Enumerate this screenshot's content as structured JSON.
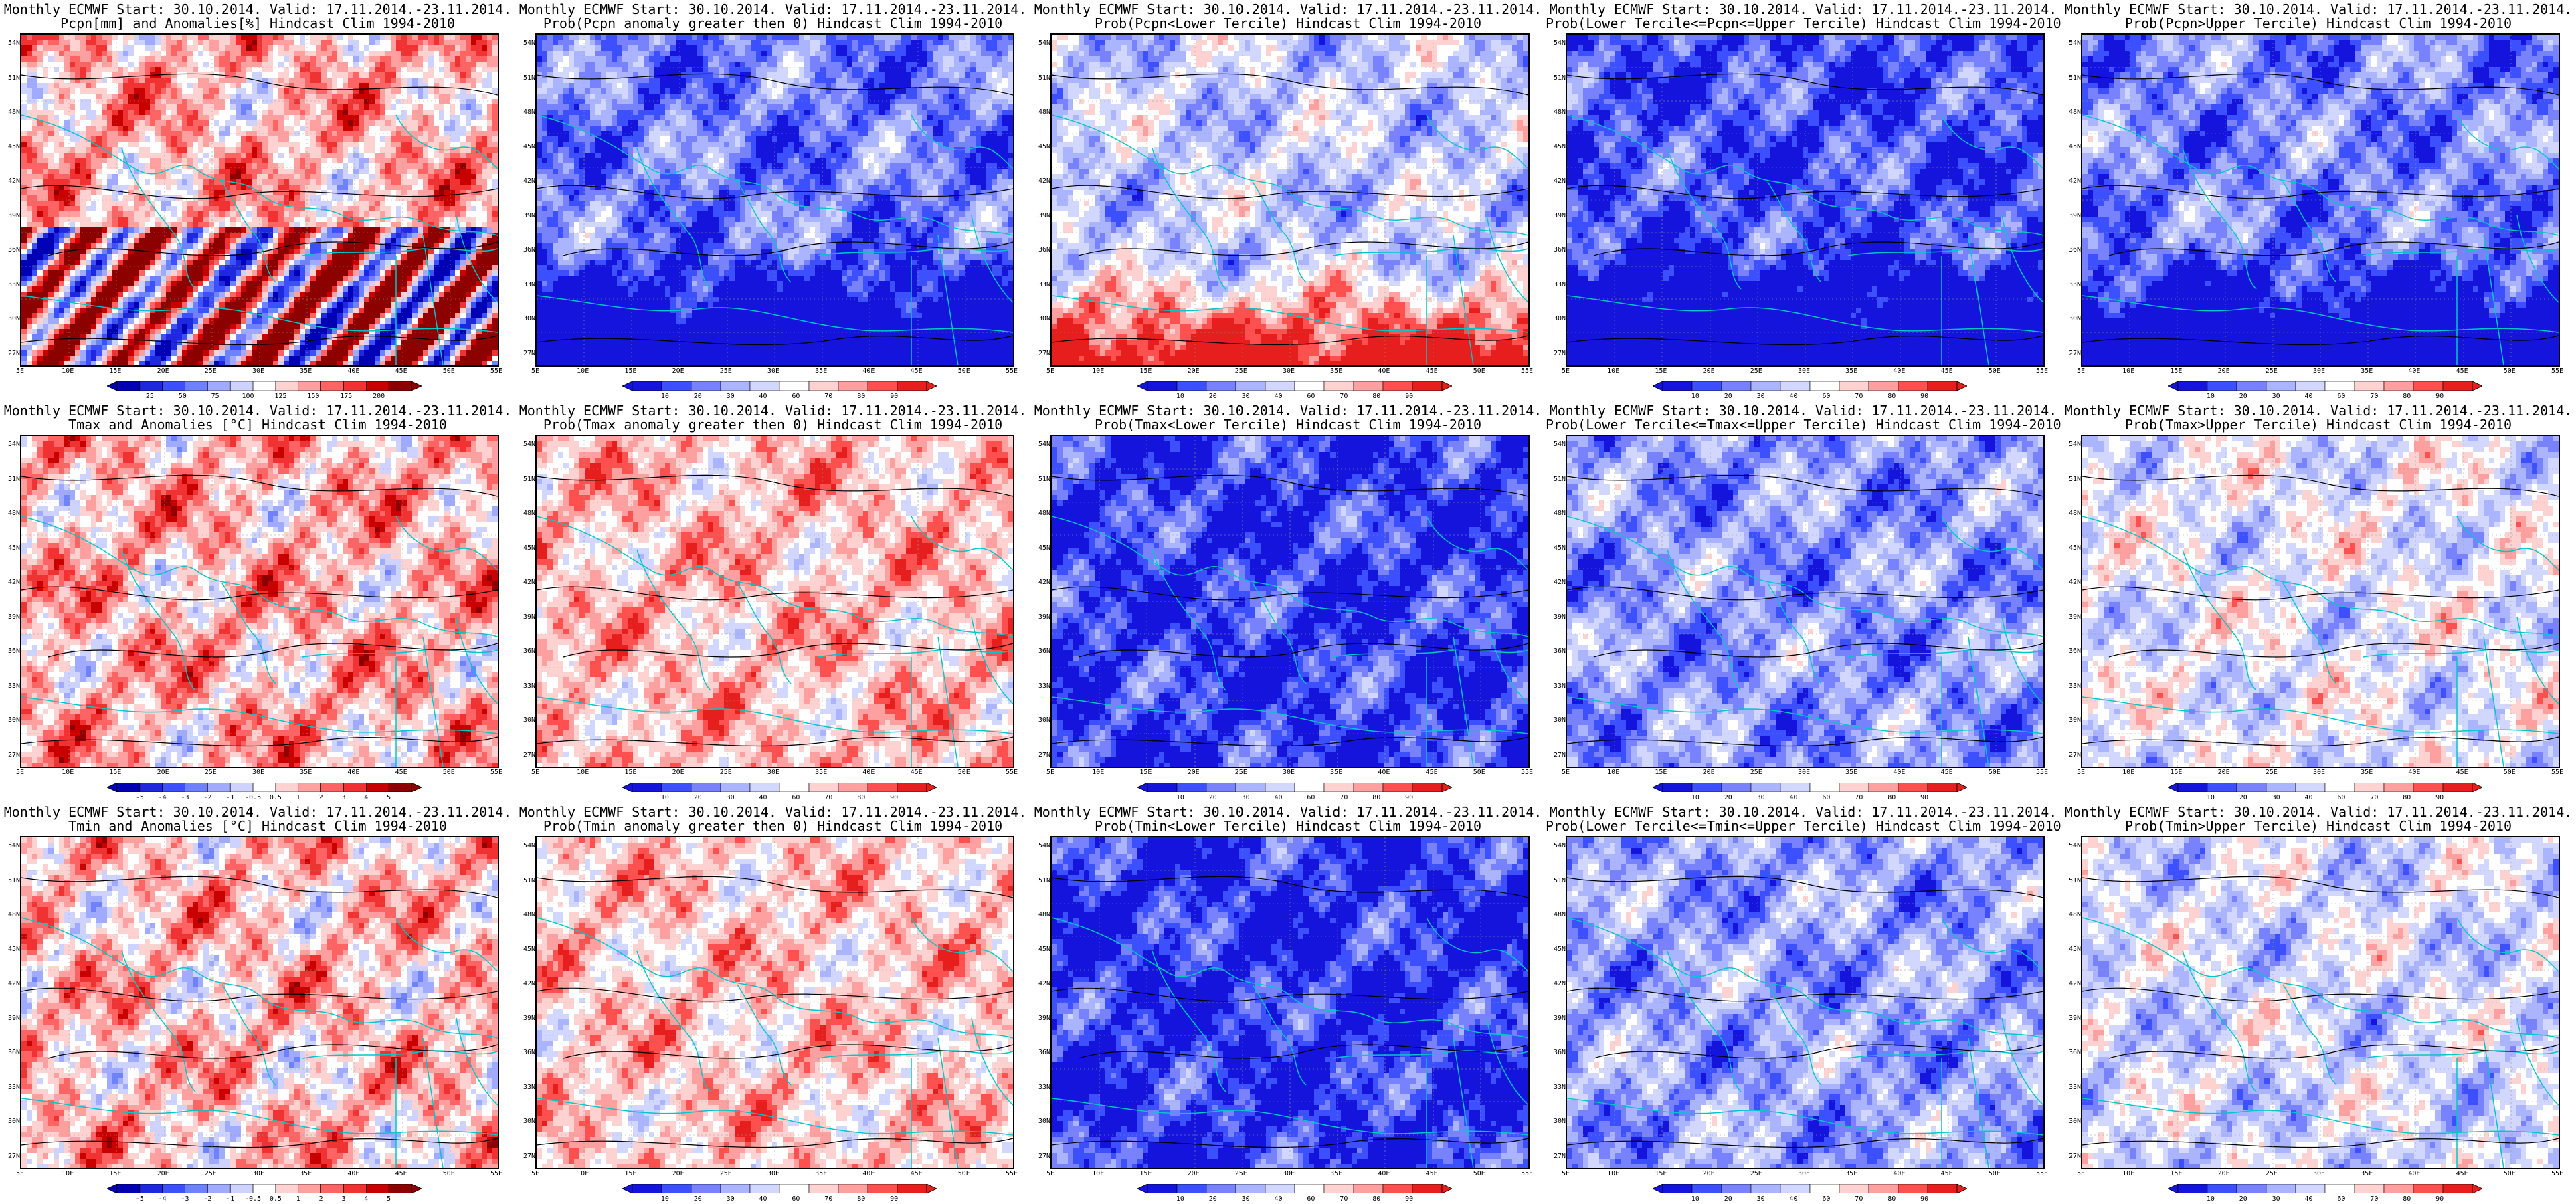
{
  "lat_labels": [
    "54N",
    "51N",
    "48N",
    "45N",
    "42N",
    "39N",
    "36N",
    "33N",
    "30N",
    "27N"
  ],
  "lon_labels": [
    "5E",
    "10E",
    "15E",
    "20E",
    "25E",
    "30E",
    "35E",
    "40E",
    "45E",
    "50E",
    "55E"
  ],
  "palettes": {
    "diverging": [
      "#0000b4",
      "#1e28dc",
      "#3c50ff",
      "#6e82ff",
      "#a0aaff",
      "#cdd2ff",
      "#ffffff",
      "#ffd2d2",
      "#ffa0a0",
      "#ff6464",
      "#f03232",
      "#c80000",
      "#8c0000"
    ],
    "probability": [
      "#1414dc",
      "#3c50ff",
      "#7882ff",
      "#aab4ff",
      "#d2d7ff",
      "#ffffff",
      "#ffd2d2",
      "#ffa0a0",
      "#ff5050",
      "#e61e1e"
    ],
    "coastline": "#00c8c8",
    "contour": "#000000"
  },
  "rows": [
    {
      "panels": [
        {
          "title1": "Monthly ECMWF Start: 30.10.2014. Valid: 17.11.2014.-23.11.2014.",
          "title2": "Pcpn[mm] and Anomalies[%] Hindcast Clim 1994-2010",
          "base": 0.62,
          "south_pattern": "mixed",
          "colorbar_type": "diverging",
          "colorbar_labels": [
            "25",
            "50",
            "75",
            "100",
            "125",
            "150",
            "175",
            "200"
          ]
        },
        {
          "title1": "Monthly ECMWF Start: 30.10.2014. Valid: 17.11.2014.-23.11.2014.",
          "title2": "Prob(Pcpn anomaly greater then 0) Hindcast Clim 1994-2010",
          "base": 0.24,
          "south_pattern": "blue",
          "colorbar_type": "probability",
          "colorbar_labels": [
            "10",
            "20",
            "30",
            "40",
            "60",
            "70",
            "80",
            "90"
          ]
        },
        {
          "title1": "Monthly ECMWF Start: 30.10.2014. Valid: 17.11.2014.-23.11.2014.",
          "title2": "Prob(Pcpn<Lower Tercile) Hindcast Clim 1994-2010",
          "base": 0.42,
          "south_pattern": "red",
          "colorbar_type": "probability",
          "colorbar_labels": [
            "10",
            "20",
            "30",
            "40",
            "60",
            "70",
            "80",
            "90"
          ]
        },
        {
          "title1": "Monthly ECMWF Start: 30.10.2014. Valid: 17.11.2014.-23.11.2014.",
          "title2": "Prob(Lower Tercile<=Pcpn<=Upper Tercile) Hindcast Clim 1994-2010",
          "base": 0.16,
          "south_pattern": "blue",
          "colorbar_type": "probability",
          "colorbar_labels": [
            "10",
            "20",
            "30",
            "40",
            "60",
            "70",
            "80",
            "90"
          ]
        },
        {
          "title1": "Monthly ECMWF Start: 30.10.2014. Valid: 17.11.2014.-23.11.2014.",
          "title2": "Prob(Pcpn>Upper Tercile) Hindcast Clim 1994-2010",
          "base": 0.26,
          "south_pattern": "blue",
          "colorbar_type": "probability",
          "colorbar_labels": [
            "10",
            "20",
            "30",
            "40",
            "60",
            "70",
            "80",
            "90"
          ]
        }
      ]
    },
    {
      "panels": [
        {
          "title1": "Monthly ECMWF Start: 30.10.2014. Valid: 17.11.2014.-23.11.2014.",
          "title2": "Tmax and Anomalies [°C] Hindcast Clim 1994-2010",
          "base": 0.62,
          "south_pattern": "none",
          "colorbar_type": "diverging",
          "colorbar_labels": [
            "-5",
            "-4",
            "-3",
            "-2",
            "-1",
            "-0.5",
            "0.5",
            "1",
            "2",
            "3",
            "4",
            "5"
          ]
        },
        {
          "title1": "Monthly ECMWF Start: 30.10.2014. Valid: 17.11.2014.-23.11.2014.",
          "title2": "Prob(Tmax anomaly greater then 0) Hindcast Clim 1994-2010",
          "base": 0.68,
          "south_pattern": "none",
          "colorbar_type": "probability",
          "colorbar_labels": [
            "10",
            "20",
            "30",
            "40",
            "60",
            "70",
            "80",
            "90"
          ]
        },
        {
          "title1": "Monthly ECMWF Start: 30.10.2014. Valid: 17.11.2014.-23.11.2014.",
          "title2": "Prob(Tmax<Lower Tercile) Hindcast Clim 1994-2010",
          "base": 0.12,
          "south_pattern": "none",
          "colorbar_type": "probability",
          "colorbar_labels": [
            "10",
            "20",
            "30",
            "40",
            "60",
            "70",
            "80",
            "90"
          ]
        },
        {
          "title1": "Monthly ECMWF Start: 30.10.2014. Valid: 17.11.2014.-23.11.2014.",
          "title2": "Prob(Lower Tercile<=Tmax<=Upper Tercile) Hindcast Clim 1994-2010",
          "base": 0.3,
          "south_pattern": "none",
          "colorbar_type": "probability",
          "colorbar_labels": [
            "10",
            "20",
            "30",
            "40",
            "60",
            "70",
            "80",
            "90"
          ]
        },
        {
          "title1": "Monthly ECMWF Start: 30.10.2014. Valid: 17.11.2014.-23.11.2014.",
          "title2": "Prob(Tmax>Upper Tercile) Hindcast Clim 1994-2010",
          "base": 0.5,
          "south_pattern": "none",
          "colorbar_type": "probability",
          "colorbar_labels": [
            "10",
            "20",
            "30",
            "40",
            "60",
            "70",
            "80",
            "90"
          ]
        }
      ]
    },
    {
      "panels": [
        {
          "title1": "Monthly ECMWF Start: 30.10.2014. Valid: 17.11.2014.-23.11.2014.",
          "title2": "Tmin and Anomalies [°C] Hindcast Clim 1994-2010",
          "base": 0.6,
          "south_pattern": "none",
          "colorbar_type": "diverging",
          "colorbar_labels": [
            "-5",
            "-4",
            "-3",
            "-2",
            "-1",
            "-0.5",
            "0.5",
            "1",
            "2",
            "3",
            "4",
            "5"
          ]
        },
        {
          "title1": "Monthly ECMWF Start: 30.10.2014. Valid: 17.11.2014.-23.11.2014.",
          "title2": "Prob(Tmin anomaly greater then 0) Hindcast Clim 1994-2010",
          "base": 0.66,
          "south_pattern": "none",
          "colorbar_type": "probability",
          "colorbar_labels": [
            "10",
            "20",
            "30",
            "40",
            "60",
            "70",
            "80",
            "90"
          ]
        },
        {
          "title1": "Monthly ECMWF Start: 30.10.2014. Valid: 17.11.2014.-23.11.2014.",
          "title2": "Prob(Tmin<Lower Tercile) Hindcast Clim 1994-2010",
          "base": 0.1,
          "south_pattern": "none",
          "colorbar_type": "probability",
          "colorbar_labels": [
            "10",
            "20",
            "30",
            "40",
            "60",
            "70",
            "80",
            "90"
          ]
        },
        {
          "title1": "Monthly ECMWF Start: 30.10.2014. Valid: 17.11.2014.-23.11.2014.",
          "title2": "Prob(Lower Tercile<=Tmin<=Upper Tercile) Hindcast Clim 1994-2010",
          "base": 0.32,
          "south_pattern": "none",
          "colorbar_type": "probability",
          "colorbar_labels": [
            "10",
            "20",
            "30",
            "40",
            "60",
            "70",
            "80",
            "90"
          ]
        },
        {
          "title1": "Monthly ECMWF Start: 30.10.2014. Valid: 17.11.2014.-23.11.2014.",
          "title2": "Prob(Tmin>Upper Tercile) Hindcast Clim 1994-2010",
          "base": 0.46,
          "south_pattern": "none",
          "colorbar_type": "probability",
          "colorbar_labels": [
            "10",
            "20",
            "30",
            "40",
            "60",
            "70",
            "80",
            "90"
          ]
        }
      ]
    }
  ]
}
